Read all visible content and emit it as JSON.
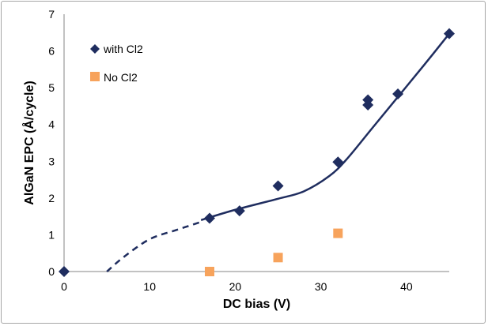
{
  "chart_data": {
    "type": "scatter",
    "title": "",
    "xlabel": "DC bias (V)",
    "ylabel": "AlGaN EPC (Å/cycle)",
    "xlim": [
      0,
      45
    ],
    "ylim": [
      0,
      7
    ],
    "xticks": [
      0,
      10,
      20,
      30,
      40
    ],
    "yticks": [
      0,
      1,
      2,
      3,
      4,
      5,
      6,
      7
    ],
    "grid": false,
    "legend_position": "top-left",
    "colors": {
      "with_cl2": "#1f2d5f",
      "no_cl2": "#f7a35c",
      "trend": "#1f2d5f"
    },
    "series": [
      {
        "name": "with Cl2",
        "marker": "diamond",
        "points": [
          {
            "x": 0,
            "y": 0
          },
          {
            "x": 17,
            "y": 1.45
          },
          {
            "x": 20.5,
            "y": 1.65
          },
          {
            "x": 25,
            "y": 2.33
          },
          {
            "x": 32,
            "y": 2.98
          },
          {
            "x": 35.5,
            "y": 4.53
          },
          {
            "x": 35.5,
            "y": 4.67
          },
          {
            "x": 39,
            "y": 4.83
          },
          {
            "x": 45,
            "y": 6.47
          }
        ]
      },
      {
        "name": "No Cl2",
        "marker": "square",
        "points": [
          {
            "x": 17,
            "y": 0.0
          },
          {
            "x": 25,
            "y": 0.38
          },
          {
            "x": 32,
            "y": 1.04
          }
        ]
      }
    ],
    "trend_line": {
      "dashed": [
        [
          5,
          0
        ],
        [
          7,
          0.4
        ],
        [
          10,
          0.88
        ],
        [
          13,
          1.12
        ],
        [
          16,
          1.35
        ]
      ],
      "solid": [
        [
          16,
          1.4
        ],
        [
          20,
          1.68
        ],
        [
          25,
          1.98
        ],
        [
          28,
          2.18
        ],
        [
          31,
          2.6
        ],
        [
          33,
          3.05
        ],
        [
          36,
          3.9
        ],
        [
          39,
          4.75
        ],
        [
          42,
          5.6
        ],
        [
          45,
          6.47
        ]
      ]
    }
  }
}
